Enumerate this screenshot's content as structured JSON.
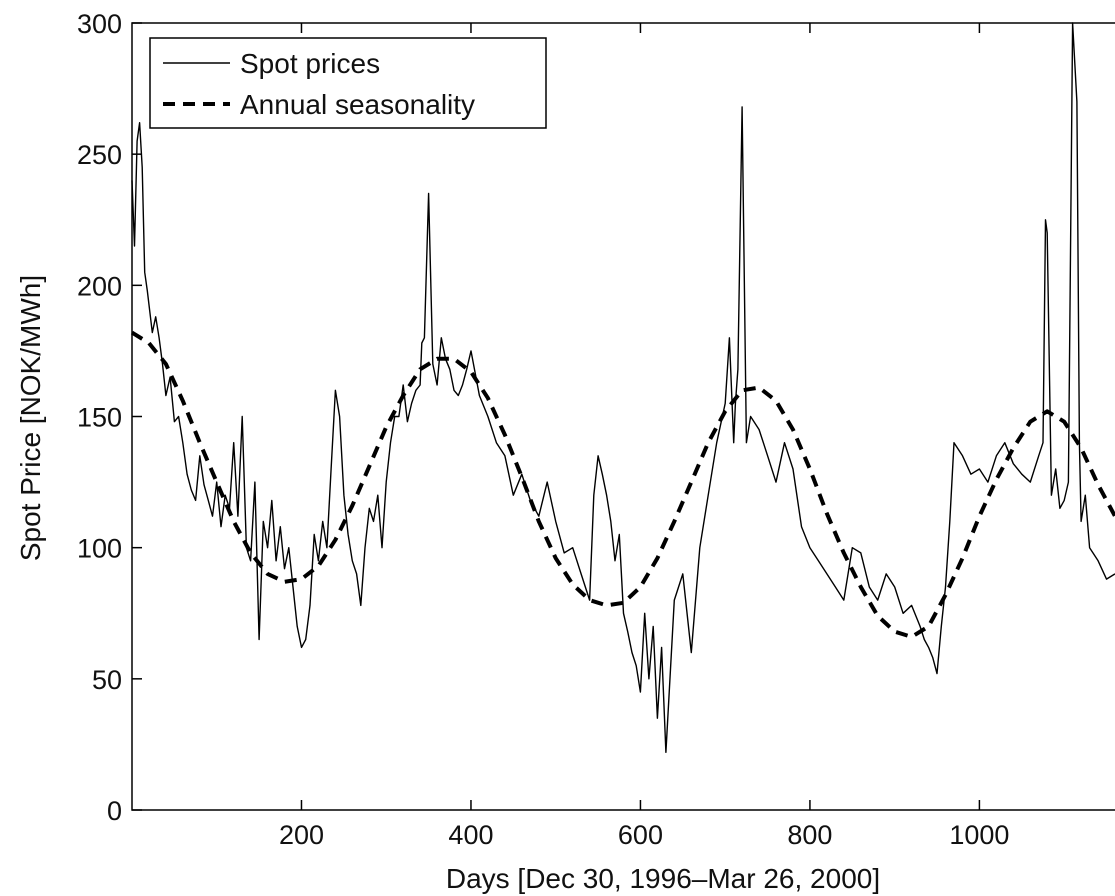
{
  "chart_data": {
    "type": "line",
    "title": "",
    "xlabel": "Days [Dec 30, 1996–Mar 26, 2000]",
    "ylabel": "Spot Price [NOK/MWh]",
    "xlim": [
      0,
      1160
    ],
    "ylim": [
      0,
      300
    ],
    "xticks": [
      200,
      400,
      600,
      800,
      1000
    ],
    "yticks": [
      0,
      50,
      100,
      150,
      200,
      250,
      300
    ],
    "grid": false,
    "legend_position": "top-left",
    "series": [
      {
        "name": "Spot prices",
        "style": "solid",
        "color": "#000000",
        "x": [
          0,
          3,
          6,
          9,
          12,
          15,
          18,
          21,
          24,
          28,
          32,
          36,
          40,
          45,
          50,
          55,
          60,
          65,
          70,
          75,
          80,
          85,
          90,
          95,
          100,
          105,
          110,
          115,
          120,
          125,
          130,
          135,
          140,
          145,
          150,
          155,
          160,
          165,
          170,
          175,
          180,
          185,
          190,
          195,
          200,
          205,
          210,
          215,
          220,
          225,
          230,
          235,
          240,
          245,
          250,
          255,
          260,
          265,
          270,
          275,
          280,
          285,
          290,
          295,
          300,
          305,
          310,
          315,
          320,
          325,
          330,
          335,
          340,
          342,
          345,
          350,
          355,
          360,
          365,
          370,
          375,
          380,
          385,
          390,
          395,
          400,
          410,
          420,
          430,
          440,
          450,
          460,
          470,
          480,
          490,
          500,
          510,
          520,
          530,
          540,
          545,
          550,
          555,
          560,
          565,
          570,
          575,
          580,
          585,
          590,
          595,
          600,
          605,
          610,
          615,
          620,
          625,
          630,
          640,
          650,
          660,
          670,
          680,
          690,
          700,
          705,
          710,
          712,
          715,
          720,
          725,
          730,
          740,
          750,
          760,
          770,
          780,
          790,
          800,
          810,
          820,
          830,
          840,
          850,
          860,
          870,
          880,
          890,
          900,
          910,
          920,
          930,
          935,
          940,
          945,
          950,
          955,
          960,
          965,
          970,
          980,
          990,
          1000,
          1010,
          1020,
          1030,
          1040,
          1050,
          1060,
          1070,
          1075,
          1078,
          1080,
          1085,
          1090,
          1095,
          1100,
          1105,
          1110,
          1115,
          1118,
          1120,
          1125,
          1130,
          1140,
          1150,
          1160
        ],
        "y": [
          240,
          215,
          255,
          262,
          245,
          205,
          198,
          190,
          182,
          188,
          180,
          170,
          158,
          165,
          148,
          150,
          140,
          128,
          122,
          118,
          135,
          124,
          118,
          112,
          125,
          108,
          120,
          115,
          140,
          112,
          150,
          100,
          95,
          125,
          65,
          110,
          100,
          118,
          95,
          108,
          92,
          100,
          85,
          70,
          62,
          65,
          78,
          105,
          95,
          110,
          100,
          130,
          160,
          150,
          120,
          105,
          95,
          90,
          78,
          100,
          115,
          110,
          120,
          100,
          125,
          140,
          150,
          150,
          162,
          148,
          155,
          160,
          162,
          178,
          180,
          235,
          170,
          162,
          180,
          172,
          168,
          160,
          158,
          162,
          168,
          175,
          158,
          150,
          140,
          135,
          120,
          128,
          118,
          112,
          125,
          110,
          98,
          100,
          90,
          80,
          120,
          135,
          128,
          120,
          110,
          95,
          105,
          75,
          68,
          60,
          55,
          45,
          75,
          50,
          70,
          35,
          62,
          22,
          80,
          90,
          60,
          100,
          120,
          140,
          155,
          180,
          140,
          155,
          168,
          268,
          140,
          150,
          145,
          135,
          125,
          140,
          130,
          108,
          100,
          95,
          90,
          85,
          80,
          100,
          98,
          85,
          80,
          90,
          85,
          75,
          78,
          70,
          65,
          62,
          58,
          52,
          70,
          85,
          110,
          140,
          135,
          128,
          130,
          125,
          135,
          140,
          132,
          128,
          125,
          135,
          140,
          225,
          220,
          120,
          130,
          115,
          118,
          125,
          300,
          270,
          140,
          110,
          120,
          100,
          95,
          88,
          90
        ]
      },
      {
        "name": "Annual seasonality",
        "style": "dashed",
        "color": "#000000",
        "x": [
          0,
          20,
          40,
          60,
          80,
          100,
          120,
          140,
          160,
          180,
          200,
          220,
          240,
          260,
          280,
          300,
          320,
          340,
          360,
          380,
          400,
          420,
          440,
          460,
          480,
          500,
          520,
          540,
          560,
          580,
          600,
          620,
          640,
          660,
          680,
          700,
          720,
          740,
          760,
          780,
          800,
          820,
          840,
          860,
          880,
          900,
          920,
          940,
          960,
          980,
          1000,
          1020,
          1040,
          1060,
          1080,
          1100,
          1120,
          1140,
          1160
        ],
        "y": [
          182,
          178,
          170,
          156,
          140,
          125,
          110,
          98,
          90,
          87,
          88,
          93,
          103,
          116,
          131,
          146,
          158,
          168,
          172,
          172,
          167,
          157,
          143,
          127,
          110,
          96,
          86,
          80,
          78,
          79,
          85,
          96,
          110,
          125,
          140,
          152,
          160,
          161,
          156,
          145,
          130,
          113,
          98,
          85,
          74,
          68,
          66,
          70,
          82,
          96,
          112,
          126,
          138,
          148,
          152,
          148,
          138,
          124,
          112
        ]
      }
    ]
  }
}
